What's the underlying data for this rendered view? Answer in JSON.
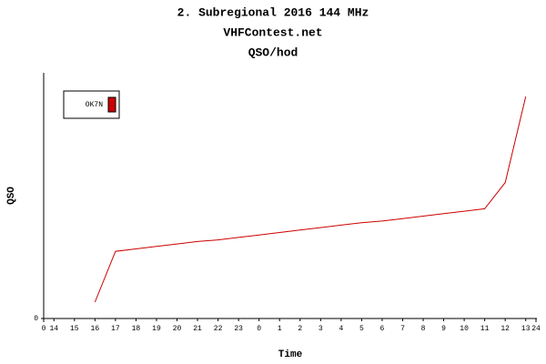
{
  "chart_data": {
    "type": "line",
    "title": "2. Subregional 2016 144 MHz",
    "subtitle": "VHFContest.net",
    "subtitle2": "QSO/hod",
    "x_label": "Time",
    "y_label": "QSO",
    "categories": [
      "14",
      "15",
      "16",
      "17",
      "18",
      "19",
      "20",
      "21",
      "22",
      "23",
      "0",
      "1",
      "2",
      "3",
      "4",
      "5",
      "6",
      "7",
      "8",
      "9",
      "10",
      "11",
      "12",
      "13"
    ],
    "xlim": [
      0,
      24
    ],
    "xticks": [
      0,
      24
    ],
    "ylim": [
      0,
      300
    ],
    "yticks": [
      0
    ],
    "series": [
      {
        "name": "OK7N",
        "color": "#cc0000",
        "values": [
          null,
          null,
          20,
          82,
          85,
          88,
          91,
          94,
          96,
          99,
          102,
          105,
          108,
          111,
          114,
          117,
          119,
          122,
          125,
          128,
          131,
          134,
          166,
          271
        ]
      }
    ]
  }
}
